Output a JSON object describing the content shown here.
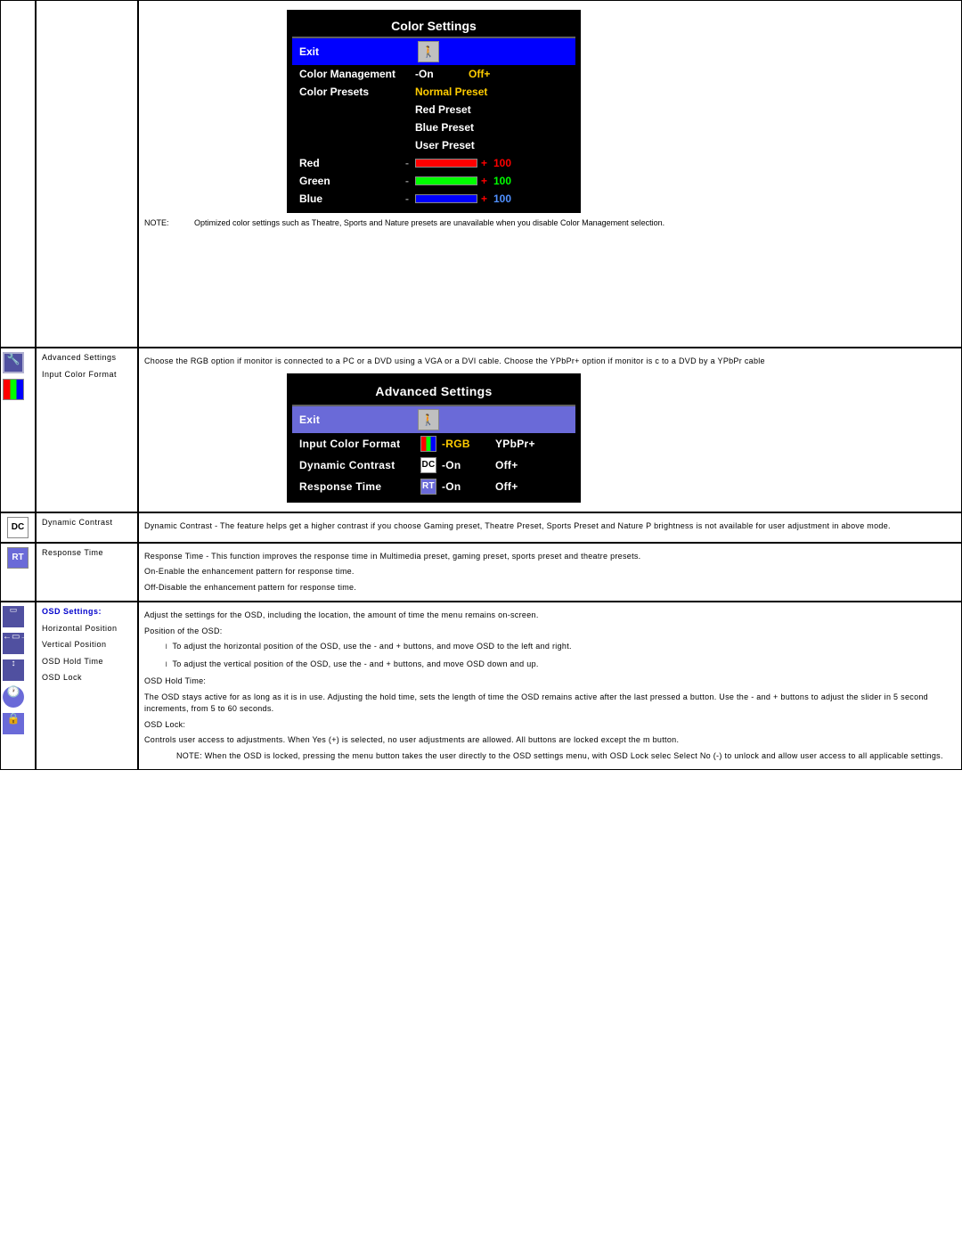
{
  "color_settings_osd": {
    "title": "Color Settings",
    "title_fontsize": 14,
    "background_color": "#000000",
    "text_color": "#ffffff",
    "highlight_color": "#0000ff",
    "accent_color": "#ffcc00",
    "rows": {
      "exit": {
        "label": "Exit",
        "highlighted": true
      },
      "color_mgmt": {
        "label": "Color Management",
        "opt_on": "-On",
        "opt_off": "Off+",
        "off_color": "#ffcc00"
      },
      "color_presets": {
        "label": "Color Presets",
        "opt": "Normal Preset",
        "opt_color": "#ffcc00"
      },
      "preset_red": {
        "label": "Red Preset"
      },
      "preset_blue": {
        "label": "Blue Preset"
      },
      "preset_user": {
        "label": "User Preset"
      }
    },
    "sliders": [
      {
        "label": "Red",
        "value": "100",
        "fill_color": "#ff0000",
        "value_color": "#ff0000",
        "fill_pct": 100
      },
      {
        "label": "Green",
        "value": "100",
        "fill_color": "#00ff00",
        "value_color": "#00ff00",
        "fill_pct": 100
      },
      {
        "label": "Blue",
        "value": "100",
        "fill_color": "#0000ff",
        "value_color": "#5090ff",
        "fill_pct": 100
      }
    ]
  },
  "color_note": {
    "prefix": "NOTE:",
    "text": "Optimized color settings such as Theatre, Sports and Nature presets are unavailable when you disable Color Management selection."
  },
  "advanced": {
    "labels": {
      "adv": "Advanced Settings",
      "icf": "Input Color Format"
    },
    "body": "Choose the RGB option if monitor is connected to a PC or a DVD using a VGA or a DVI cable. Choose the YPbPr+ option if monitor is c  to a DVD by a YPbPr cable"
  },
  "advanced_osd": {
    "title": "Advanced Settings",
    "background_color": "#000000",
    "highlight_color": "#6a6ad8",
    "rows": {
      "exit": {
        "label": "Exit",
        "highlighted": true
      },
      "icf": {
        "label": "Input Color Format",
        "opt1": "-RGB",
        "opt1_color": "#ffcc00",
        "opt2": "YPbPr+"
      },
      "dc": {
        "label": "Dynamic Contrast",
        "opt1": "-On",
        "opt2": "Off+"
      },
      "rt": {
        "label": "Response Time",
        "opt1": "-On",
        "opt2": "Off+"
      }
    }
  },
  "dc": {
    "label": "Dynamic Contrast",
    "body": "Dynamic Contrast - The feature helps get a higher contrast if you choose Gaming preset, Theatre Preset, Sports Preset and Nature P  brightness is not available for user adjustment in above mode."
  },
  "rt": {
    "label": "Response Time",
    "body1": "Response Time - This function improves the response time in Multimedia preset, gaming preset, sports preset and theatre presets.",
    "body2": "On-Enable the enhancement pattern for response time.",
    "body3": "Off-Disable the enhancement pattern for response time."
  },
  "osd_settings": {
    "heading": "OSD Settings:",
    "labels": {
      "hp": "Horizontal Position",
      "vp": "Vertical Position",
      "hold": "OSD Hold Time",
      "lock": "OSD Lock"
    },
    "body": {
      "intro": "Adjust the settings for the OSD, including the location, the amount of time the menu remains on-screen.",
      "pos_hdr": "Position of the OSD:",
      "bullet_h": "To adjust the horizontal position of the OSD, use the - and + buttons, and move OSD to the left and right.",
      "bullet_v": "To adjust the vertical position of the OSD, use the - and + buttons, and move OSD down and up.",
      "hold_hdr": "OSD Hold Time:",
      "hold_txt": "The OSD stays active for as long as it is in use. Adjusting the hold time, sets the length of time the OSD remains active after the last  pressed a button. Use the - and + buttons to adjust the slider in 5 second increments, from 5 to 60 seconds.",
      "lock_hdr": "OSD Lock:",
      "lock_txt": "Controls user access to adjustments. When Yes (+) is selected, no user adjustments are allowed. All buttons are locked except the m  button.",
      "lock_note": "NOTE: When the OSD is locked, pressing the menu button takes the user directly to the OSD settings menu, with OSD Lock selec  Select No (-) to unlock and allow user access to all applicable settings."
    }
  }
}
